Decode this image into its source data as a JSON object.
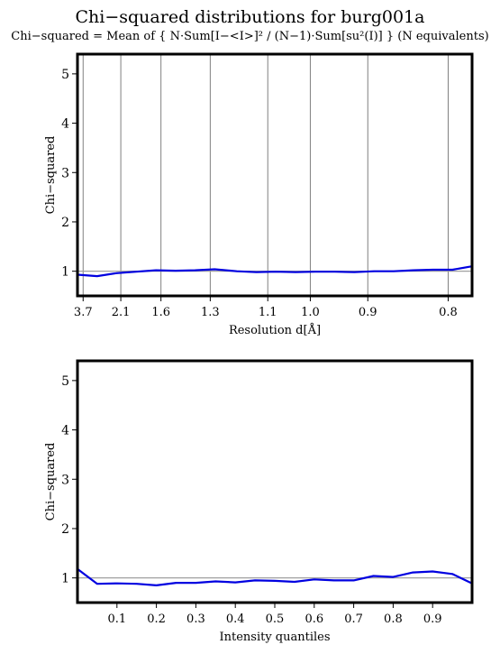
{
  "header": {
    "title": "Chi−squared distributions for burg001a",
    "subtitle": "Chi−squared = Mean of { N·Sum[I−<I>]² / (N−1)·Sum[su²(I)] } (N equivalents)"
  },
  "chart_data": [
    {
      "type": "line",
      "xlabel": "Resolution d[Å]",
      "ylabel": "Chi−squared",
      "xscale": "inverse-square of resolution d (x = 1/d², Å⁻²)",
      "xlim": [
        0.05,
        1.66
      ],
      "ylim": [
        0.5,
        5.4
      ],
      "yticks": [
        1,
        2,
        3,
        4,
        5
      ],
      "vertical_grid": true,
      "reference_line_y": 1,
      "xticks": [
        {
          "d": 3.7,
          "label": "3.7"
        },
        {
          "d": 2.1,
          "label": "2.1"
        },
        {
          "d": 1.6,
          "label": "1.6"
        },
        {
          "d": 1.3,
          "label": "1.3"
        },
        {
          "d": 1.1,
          "label": "1.1"
        },
        {
          "d": 1.0,
          "label": "1.0"
        },
        {
          "d": 0.9,
          "label": "0.9"
        },
        {
          "d": 0.8,
          "label": "0.8"
        }
      ],
      "series": [
        {
          "color": "#0000e0",
          "x": [
            0.05,
            0.13,
            0.21,
            0.29,
            0.37,
            0.45,
            0.53,
            0.61,
            0.7,
            0.78,
            0.86,
            0.94,
            1.02,
            1.1,
            1.18,
            1.26,
            1.34,
            1.42,
            1.5,
            1.58,
            1.66
          ],
          "y": [
            0.93,
            0.9,
            0.96,
            0.99,
            1.02,
            1.01,
            1.02,
            1.04,
            1.0,
            0.98,
            0.99,
            0.98,
            0.99,
            0.99,
            0.98,
            1.0,
            1.0,
            1.02,
            1.03,
            1.03,
            1.1
          ]
        }
      ]
    },
    {
      "type": "line",
      "xlabel": "Intensity quantiles",
      "ylabel": "Chi−squared",
      "xlim": [
        0,
        1
      ],
      "ylim": [
        0.5,
        5.4
      ],
      "yticks": [
        1,
        2,
        3,
        4,
        5
      ],
      "xticks": [
        0.1,
        0.2,
        0.3,
        0.4,
        0.5,
        0.6,
        0.7,
        0.8,
        0.9
      ],
      "xticklabels": [
        "0.1",
        "0.2",
        "0.3",
        "0.4",
        "0.5",
        "0.6",
        "0.7",
        "0.8",
        "0.9"
      ],
      "vertical_grid": false,
      "reference_line_y": 1,
      "series": [
        {
          "color": "#0000e0",
          "x": [
            0.0,
            0.05,
            0.1,
            0.15,
            0.2,
            0.25,
            0.3,
            0.35,
            0.4,
            0.45,
            0.5,
            0.55,
            0.6,
            0.65,
            0.7,
            0.75,
            0.8,
            0.85,
            0.9,
            0.95,
            1.0
          ],
          "y": [
            1.18,
            0.88,
            0.89,
            0.88,
            0.85,
            0.9,
            0.9,
            0.93,
            0.91,
            0.95,
            0.94,
            0.92,
            0.97,
            0.95,
            0.95,
            1.04,
            1.02,
            1.11,
            1.13,
            1.08,
            0.89
          ]
        }
      ]
    }
  ]
}
